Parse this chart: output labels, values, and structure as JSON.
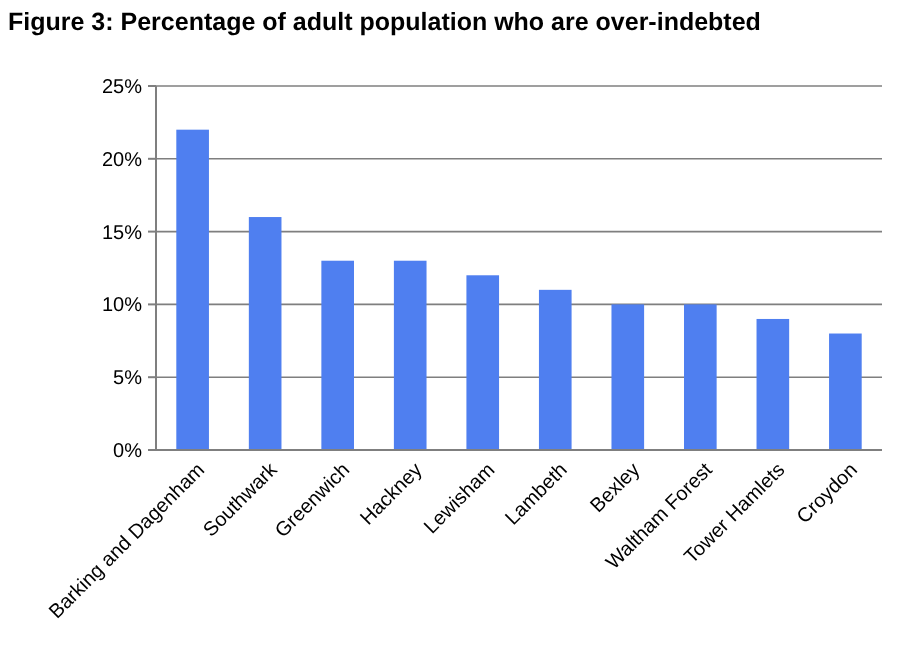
{
  "chart_data": {
    "type": "bar",
    "title": "Figure 3: Percentage of adult population who are over-indebted",
    "categories": [
      "Barking and Dagenham",
      "Southwark",
      "Greenwich",
      "Hackney",
      "Lewisham",
      "Lambeth",
      "Bexley",
      "Waltham Forest",
      "Tower Hamlets",
      "Croydon"
    ],
    "values": [
      22,
      16,
      13,
      13,
      12,
      11,
      10,
      10,
      9,
      8
    ],
    "color": "#4f7ff0",
    "ylim": [
      0,
      25
    ],
    "yticks": [
      {
        "value": 0,
        "label": "0%"
      },
      {
        "value": 5,
        "label": "5%"
      },
      {
        "value": 10,
        "label": "10%"
      },
      {
        "value": 15,
        "label": "15%"
      },
      {
        "value": 20,
        "label": "20%"
      },
      {
        "value": 25,
        "label": "25%"
      }
    ],
    "grid": "y"
  }
}
